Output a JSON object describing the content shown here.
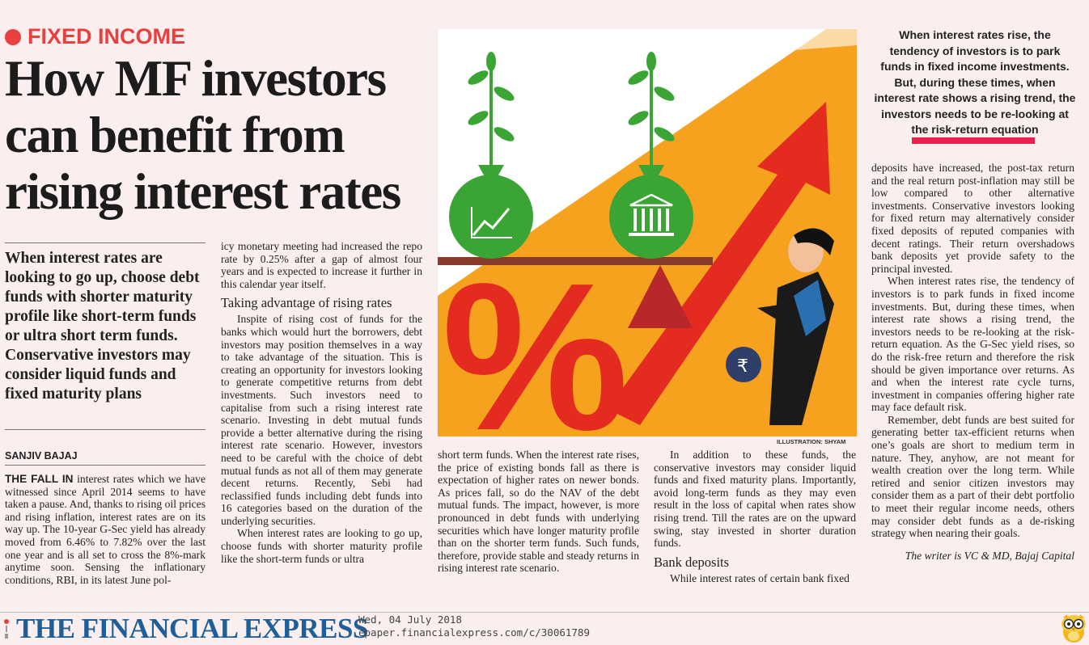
{
  "article": {
    "kicker": "FIXED INCOME",
    "headline": "How MF investors can benefit from rising interest rates",
    "deck": "When interest rates are looking to go up, choose debt funds with shorter maturity profile like short-term funds or ultra short term funds.  Conservative investors may consider liquid funds and fixed maturity plans",
    "byline": "SANJIV BAJAJ",
    "lead_in": "THE FALL IN",
    "col1_body": " interest rates which we have witnessed since April 2014 seems to have taken a pause. And, thanks to rising oil prices and rising inflation, interest rates are on its way up. The 10-year G-Sec yield has already moved from 6.46% to 7.82% over the last one year and is all set to cross the 8%-mark anytime soon. Sensing the inflationary conditions, RBI, in its latest June pol-",
    "col2_p1": "icy monetary meeting had increased the repo rate by 0.25% after a gap of almost four years and is expected to increase it further in this calendar year itself.",
    "subhead1": "Taking advantage of rising rates",
    "col2_p2": "Inspite of rising cost of funds for the banks which would hurt the borrowers, debt investors may position themselves in a way to take advantage of the situation. This is creating an opportunity for investors looking to generate competitive returns from debt investments. Such investors need to capitalise from such a rising interest rate scenario. Investing in debt mutual funds provide a better alternative during the rising interest rate scenario. However, investors need to be careful with the choice of debt mutual funds as not all of them may generate decent returns. Recently, Sebi had reclassified funds including debt funds into 16 categories based on the duration of the underlying securities.",
    "col2_p3": "When interest rates are looking to go up, choose funds with shorter maturity profile like the short-term funds or ultra",
    "col3_p1": "short term funds. When the interest rate rises, the price of existing bonds fall as there is expectation of higher rates on newer bonds. As prices fall, so do the NAV of the debt mutual funds. The impact, however, is more pronounced in debt funds with underlying securities which have longer maturity profile than on the shorter term funds. Such funds, therefore, provide stable and steady returns in rising interest rate scenario.",
    "col4_p1": "In addition to these funds, the conservative investors may consider liquid funds and fixed maturity plans. Importantly, avoid long-term funds as they may even result in the loss of capital when rates show rising trend. Till the rates are on the upward swing, stay invested in shorter duration funds.",
    "subhead2": "Bank deposits",
    "col4_p2": "While interest rates of certain bank fixed",
    "pull_quote": "When interest rates rise, the tendency of investors is to park funds in fixed income investments. But, during these times, when interest rate shows a rising trend, the investors needs to be re-looking at the risk-return equation",
    "col5_p1": "deposits have increased, the post-tax return and the real return post-inflation may still be low compared to other alternative investments. Conservative investors looking for fixed return may alternatively consider fixed deposits of reputed companies with decent ratings. Their return overshadows bank deposits yet provide safety to the principal invested.",
    "col5_p2": "When interest rates rise, the tendency of investors is to park funds in fixed income investments. But, during these times, when interest rate shows a rising trend, the investors needs to be re-looking at the risk-return equation. As the G-Sec yield rises, so do the risk-free return and therefore the risk should be given importance over returns. As and when the interest rate cycle turns, investment in companies offering higher rate may face default risk.",
    "col5_p3": "Remember, debt funds are best suited for generating better tax-efficient returns when one’s goals are short to medium term in nature. They, anyhow, are not meant for wealth creation over the long term. While retired and senior citizen investors may consider them as a part of their debt portfolio to meet their regular income needs, others may consider debt funds as a de-risking strategy when nearing their goals.",
    "signoff": "The writer is VC & MD, Bajaj Capital",
    "illustration_credit": "ILLUSTRATION: SHYAM",
    "illustration_symbol": "%",
    "rupee_symbol": "₹"
  },
  "footer": {
    "publication": "THE FINANCIAL EXPRESS",
    "date": "Wed, 04 July 2018",
    "url": "epaper.financialexpress.com/c/30061789"
  },
  "colors": {
    "accent_red": "#e8403f",
    "quote_bar": "#e8224c",
    "logo_blue": "#1f5f99",
    "background": "#fbeeee",
    "illustration_orange": "#f6a21e",
    "bag_green": "#3aa535"
  },
  "icons": [
    "growth-chart-icon",
    "bank-icon",
    "rupee-bag-icon",
    "owl-icon"
  ]
}
